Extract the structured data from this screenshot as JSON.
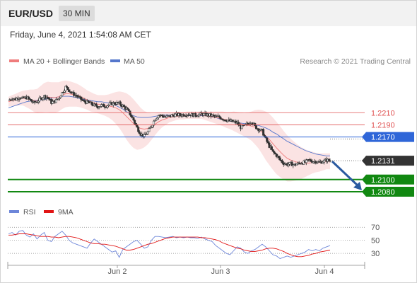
{
  "header": {
    "pair": "EUR/USD",
    "timeframe": "30 MIN",
    "datetime": "Friday, June 4, 2021 1:54:08 AM CET"
  },
  "legend": {
    "ma20_label": "MA 20 + Bollinger Bands",
    "ma50_label": "MA 50",
    "credit": "Research © 2021 Trading Central",
    "rsi_label": "RSI",
    "rsi_ma_label": "9MA"
  },
  "colors": {
    "band_fill": "#fbe3e3",
    "ma20": "#ef7c7c",
    "ma50": "#5577cc",
    "resistance": "#e05454",
    "pivot": "#2f66d8",
    "support": "#118811",
    "current": "#333333",
    "arrow": "#2a5aa0",
    "rsi": "#6d86d9",
    "rsi_ma": "#e11515"
  },
  "chart_data": [
    {
      "type": "candlestick",
      "title": "EUR/USD 30 MIN",
      "ylim": [
        1.2066,
        1.2272
      ],
      "x_labels": [
        "Jun 2",
        "Jun 3",
        "Jun 4"
      ],
      "levels": [
        {
          "value": 1.221,
          "label": "1.2210",
          "kind": "resistance"
        },
        {
          "value": 1.219,
          "label": "1.2190",
          "kind": "resistance"
        },
        {
          "value": 1.217,
          "label": "1.2170",
          "kind": "pivot"
        },
        {
          "value": 1.2131,
          "label": "1.2131",
          "kind": "current"
        },
        {
          "value": 1.21,
          "label": "1.2100",
          "kind": "support"
        },
        {
          "value": 1.208,
          "label": "1.2080",
          "kind": "support"
        }
      ],
      "price_path": [
        1.223,
        1.2234,
        1.2232,
        1.2236,
        1.2233,
        1.2235,
        1.2231,
        1.2226,
        1.2229,
        1.2233,
        1.2237,
        1.2235,
        1.2227,
        1.2229,
        1.2233,
        1.2243,
        1.2252,
        1.2247,
        1.2241,
        1.2238,
        1.2233,
        1.2229,
        1.2227,
        1.2225,
        1.2222,
        1.222,
        1.2222,
        1.2221,
        1.2223,
        1.2225,
        1.2226,
        1.2225,
        1.2221,
        1.2216,
        1.2208,
        1.2198,
        1.2185,
        1.2175,
        1.2172,
        1.2178,
        1.2188,
        1.22,
        1.2206,
        1.2205,
        1.2203,
        1.2204,
        1.2206,
        1.2207,
        1.2206,
        1.2207,
        1.2208,
        1.2207,
        1.2206,
        1.2207,
        1.2208,
        1.2207,
        1.2206,
        1.2205,
        1.2203,
        1.2203,
        1.22,
        1.2198,
        1.2196,
        1.2195,
        1.2193,
        1.2186,
        1.2188,
        1.2192,
        1.2196,
        1.2187,
        1.2183,
        1.218,
        1.2166,
        1.2155,
        1.2145,
        1.214,
        1.2132,
        1.2127,
        1.2125,
        1.2126,
        1.2124,
        1.2126,
        1.2128,
        1.2128,
        1.2132,
        1.213,
        1.213,
        1.2128,
        1.213,
        1.2132,
        1.2131
      ],
      "ma20": [
        1.2228,
        1.223,
        1.2231,
        1.2233,
        1.2234,
        1.2233,
        1.2232,
        1.223,
        1.2229,
        1.2232,
        1.2235,
        1.2236,
        1.2235,
        1.2235,
        1.2236,
        1.2239,
        1.2241,
        1.2241,
        1.224,
        1.2239,
        1.2237,
        1.2234,
        1.2231,
        1.2228,
        1.2226,
        1.2224,
        1.2223,
        1.2222,
        1.2221,
        1.222,
        1.2218,
        1.2215,
        1.221,
        1.2204,
        1.2198,
        1.2192,
        1.2187,
        1.2184,
        1.2183,
        1.2184,
        1.2187,
        1.2191,
        1.2195,
        1.2198,
        1.22,
        1.2202,
        1.2203,
        1.2204,
        1.2205,
        1.2205,
        1.2206,
        1.2206,
        1.2206,
        1.2206,
        1.2206,
        1.2205,
        1.2204,
        1.2203,
        1.2202,
        1.2201,
        1.22,
        1.2198,
        1.2197,
        1.2196,
        1.2194,
        1.2192,
        1.219,
        1.2189,
        1.2188,
        1.2186,
        1.2183,
        1.2178,
        1.2172,
        1.2166,
        1.2159,
        1.2152,
        1.2146,
        1.214,
        1.2135,
        1.2132,
        1.213,
        1.2128,
        1.2127,
        1.2127,
        1.2127,
        1.2128,
        1.2128,
        1.2128,
        1.2129,
        1.213,
        1.213
      ],
      "ma50": [
        1.2218,
        1.222,
        1.2222,
        1.2224,
        1.2226,
        1.2228,
        1.2229,
        1.223,
        1.223,
        1.2231,
        1.2232,
        1.2233,
        1.2234,
        1.2235,
        1.2236,
        1.2237,
        1.2237,
        1.2237,
        1.2236,
        1.2235,
        1.2233,
        1.2232,
        1.2231,
        1.223,
        1.2229,
        1.2228,
        1.2228,
        1.2227,
        1.2226,
        1.2224,
        1.2222,
        1.2219,
        1.2216,
        1.2212,
        1.2208,
        1.2205,
        1.2203,
        1.2202,
        1.2202,
        1.2202,
        1.2203,
        1.2204,
        1.2205,
        1.2206,
        1.2206,
        1.2206,
        1.2206,
        1.2206,
        1.2206,
        1.2206,
        1.2205,
        1.2205,
        1.2205,
        1.2205,
        1.2205,
        1.2205,
        1.2204,
        1.2203,
        1.2202,
        1.22,
        1.2199,
        1.2197,
        1.2196,
        1.2195,
        1.2194,
        1.2193,
        1.2192,
        1.2192,
        1.2191,
        1.219,
        1.2189,
        1.2187,
        1.2185,
        1.2182,
        1.2178,
        1.2175,
        1.2171,
        1.2167,
        1.2163,
        1.216,
        1.2157,
        1.2154,
        1.2151,
        1.2148,
        1.2146,
        1.2144,
        1.2142,
        1.2141,
        1.214,
        1.2139,
        1.2139
      ],
      "band_width": [
        0.0008,
        0.0009,
        0.001,
        0.0011,
        0.0012,
        0.0014,
        0.0016,
        0.0018,
        0.002,
        0.0022,
        0.0024,
        0.0025,
        0.0025,
        0.0025,
        0.0024,
        0.0023,
        0.0022,
        0.0021,
        0.002,
        0.0019,
        0.0018,
        0.0017,
        0.0016,
        0.0016,
        0.0015,
        0.0015,
        0.0016,
        0.0017,
        0.0019,
        0.0022,
        0.0026,
        0.003,
        0.0034,
        0.0038,
        0.004,
        0.004,
        0.0038,
        0.0034,
        0.003,
        0.0026,
        0.0022,
        0.0018,
        0.0015,
        0.0012,
        0.001,
        0.0008,
        0.0007,
        0.0006,
        0.0006,
        0.0006,
        0.0006,
        0.0006,
        0.0006,
        0.0006,
        0.0006,
        0.0007,
        0.0008,
        0.0009,
        0.001,
        0.0011,
        0.0012,
        0.0013,
        0.0014,
        0.0016,
        0.0017,
        0.0018,
        0.0019,
        0.0021,
        0.0024,
        0.0028,
        0.0032,
        0.0036,
        0.004,
        0.0042,
        0.0043,
        0.0043,
        0.0042,
        0.004,
        0.0038,
        0.0035,
        0.0032,
        0.0029,
        0.0026,
        0.0023,
        0.002,
        0.0018,
        0.0016,
        0.0015,
        0.0014,
        0.0013,
        0.0013
      ]
    },
    {
      "type": "line",
      "title": "RSI",
      "ylim": [
        15,
        80
      ],
      "y_ticks": [
        70,
        50,
        30
      ],
      "series": [
        {
          "name": "RSI",
          "values": [
            60,
            62,
            58,
            64,
            65,
            58,
            55,
            60,
            52,
            58,
            62,
            50,
            48,
            56,
            60,
            64,
            58,
            50,
            46,
            44,
            42,
            40,
            38,
            46,
            52,
            48,
            44,
            40,
            36,
            32,
            34,
            24,
            36,
            40,
            44,
            48,
            50,
            44,
            38,
            40,
            50,
            56,
            56,
            55,
            54,
            55,
            56,
            54,
            55,
            54,
            55,
            54,
            54,
            53,
            55,
            52,
            50,
            48,
            42,
            38,
            34,
            30,
            28,
            34,
            40,
            38,
            32,
            30,
            34,
            36,
            40,
            44,
            40,
            34,
            28,
            26,
            22,
            24,
            26,
            24,
            26,
            28,
            30,
            32,
            36,
            34,
            36,
            34,
            38,
            40,
            42
          ]
        },
        {
          "name": "9MA",
          "values": [
            58,
            58,
            59,
            60,
            60,
            60,
            59,
            58,
            57,
            56,
            56,
            56,
            55,
            55,
            54,
            55,
            56,
            56,
            55,
            54,
            52,
            50,
            48,
            46,
            45,
            45,
            44,
            44,
            43,
            42,
            41,
            39,
            37,
            35,
            35,
            36,
            38,
            40,
            42,
            44,
            45,
            47,
            49,
            51,
            53,
            54,
            55,
            55,
            55,
            55,
            55,
            55,
            55,
            55,
            54,
            54,
            53,
            52,
            51,
            49,
            46,
            44,
            42,
            40,
            38,
            37,
            35,
            34,
            33,
            33,
            34,
            35,
            37,
            38,
            38,
            37,
            35,
            33,
            30,
            28,
            26,
            25,
            25,
            26,
            27,
            29,
            30,
            32,
            33,
            34,
            35
          ]
        }
      ]
    }
  ]
}
